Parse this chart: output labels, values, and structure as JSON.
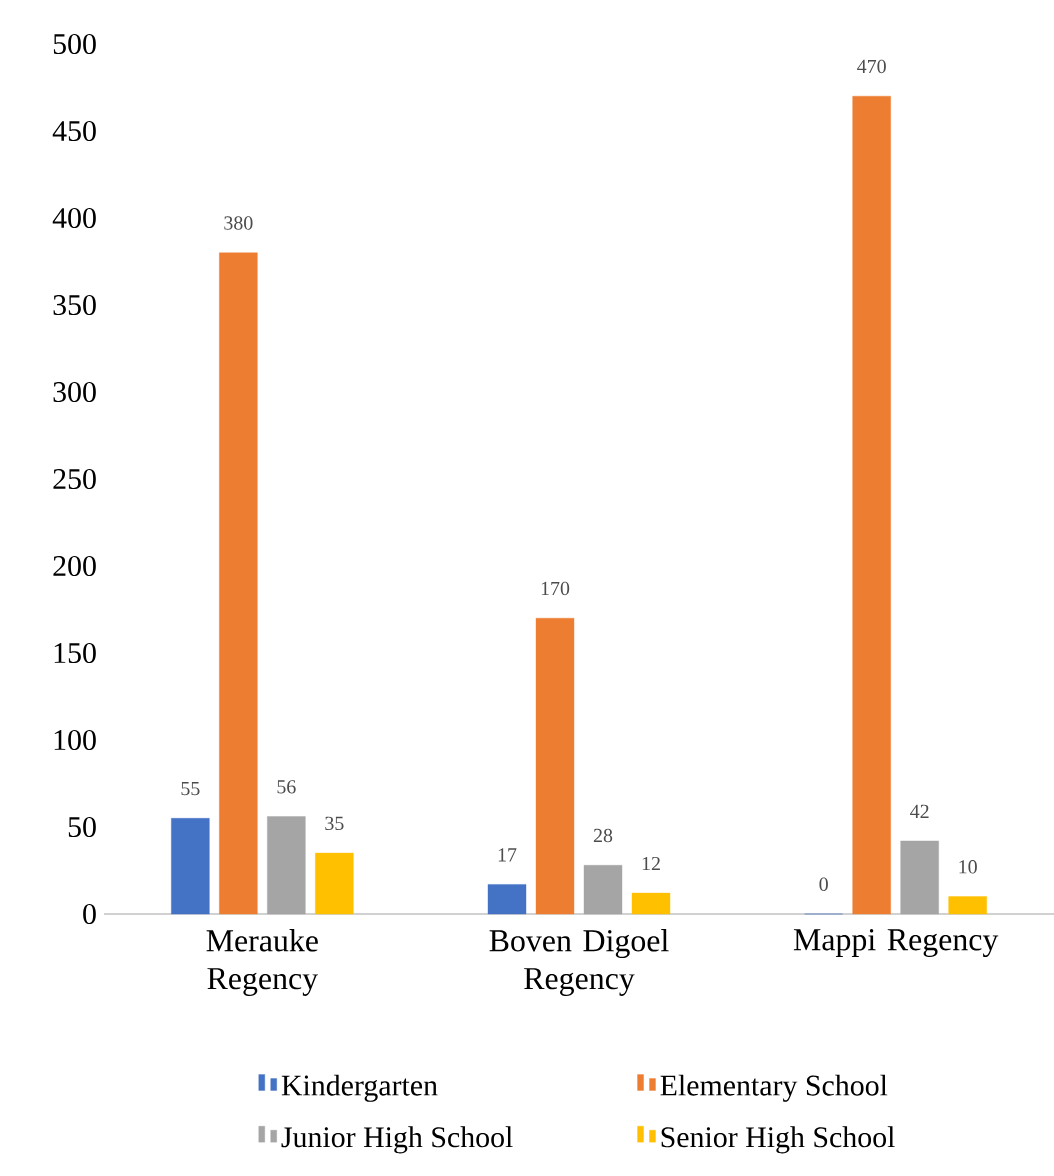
{
  "chart_data": {
    "type": "bar",
    "categories": [
      "Merauke Regency",
      "Boven Digoel Regency",
      "Mappi Regency"
    ],
    "series": [
      {
        "name": "Kindergarten",
        "color": "#4472c4",
        "values": [
          55,
          17,
          0
        ]
      },
      {
        "name": "Elementary School",
        "color": "#ed7d31",
        "values": [
          380,
          170,
          470
        ]
      },
      {
        "name": "Junior High School",
        "color": "#a5a5a5",
        "values": [
          56,
          28,
          42
        ]
      },
      {
        "name": "Senior High School",
        "color": "#ffc000",
        "values": [
          35,
          12,
          10
        ]
      }
    ],
    "data_labels": true,
    "ylim": [
      0,
      500
    ],
    "yticks": [
      0,
      50,
      100,
      150,
      200,
      250,
      300,
      350,
      400,
      450,
      500
    ],
    "legend": "bottom"
  }
}
